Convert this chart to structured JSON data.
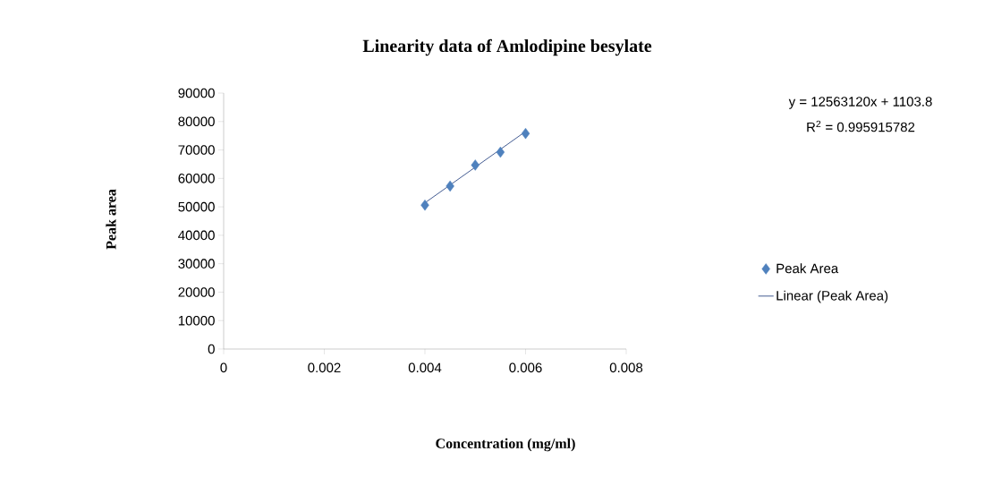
{
  "chart_data": {
    "type": "scatter",
    "title": "Linearity data of Amlodipine besylate",
    "xlabel": "Concentration (mg/ml)",
    "ylabel": "Peak  area",
    "series": [
      {
        "name": "Peak Area",
        "color": "#4f81bd",
        "marker": "diamond",
        "x": [
          0.004,
          0.0045,
          0.005,
          0.0055,
          0.006
        ],
        "values": [
          50600,
          57300,
          64700,
          69200,
          75800
        ]
      },
      {
        "name": "Linear (Peak Area)",
        "type": "line",
        "marker": "none",
        "color": "#2f4a86",
        "x": [
          0.004,
          0.006
        ],
        "values": [
          51400,
          76500
        ]
      }
    ],
    "annotations": [
      "y = 12563120x + 1103.8",
      "R$^{2}$ = 0.995915782"
    ],
    "xlim": [
      0,
      0.008
    ],
    "xticks": [
      0,
      0.002,
      0.004,
      0.006,
      0.008
    ],
    "ylim": [
      0,
      90000
    ],
    "yticks": [
      0,
      10000,
      20000,
      30000,
      40000,
      50000,
      60000,
      70000,
      80000,
      90000
    ],
    "grid": false,
    "legend": "right"
  }
}
